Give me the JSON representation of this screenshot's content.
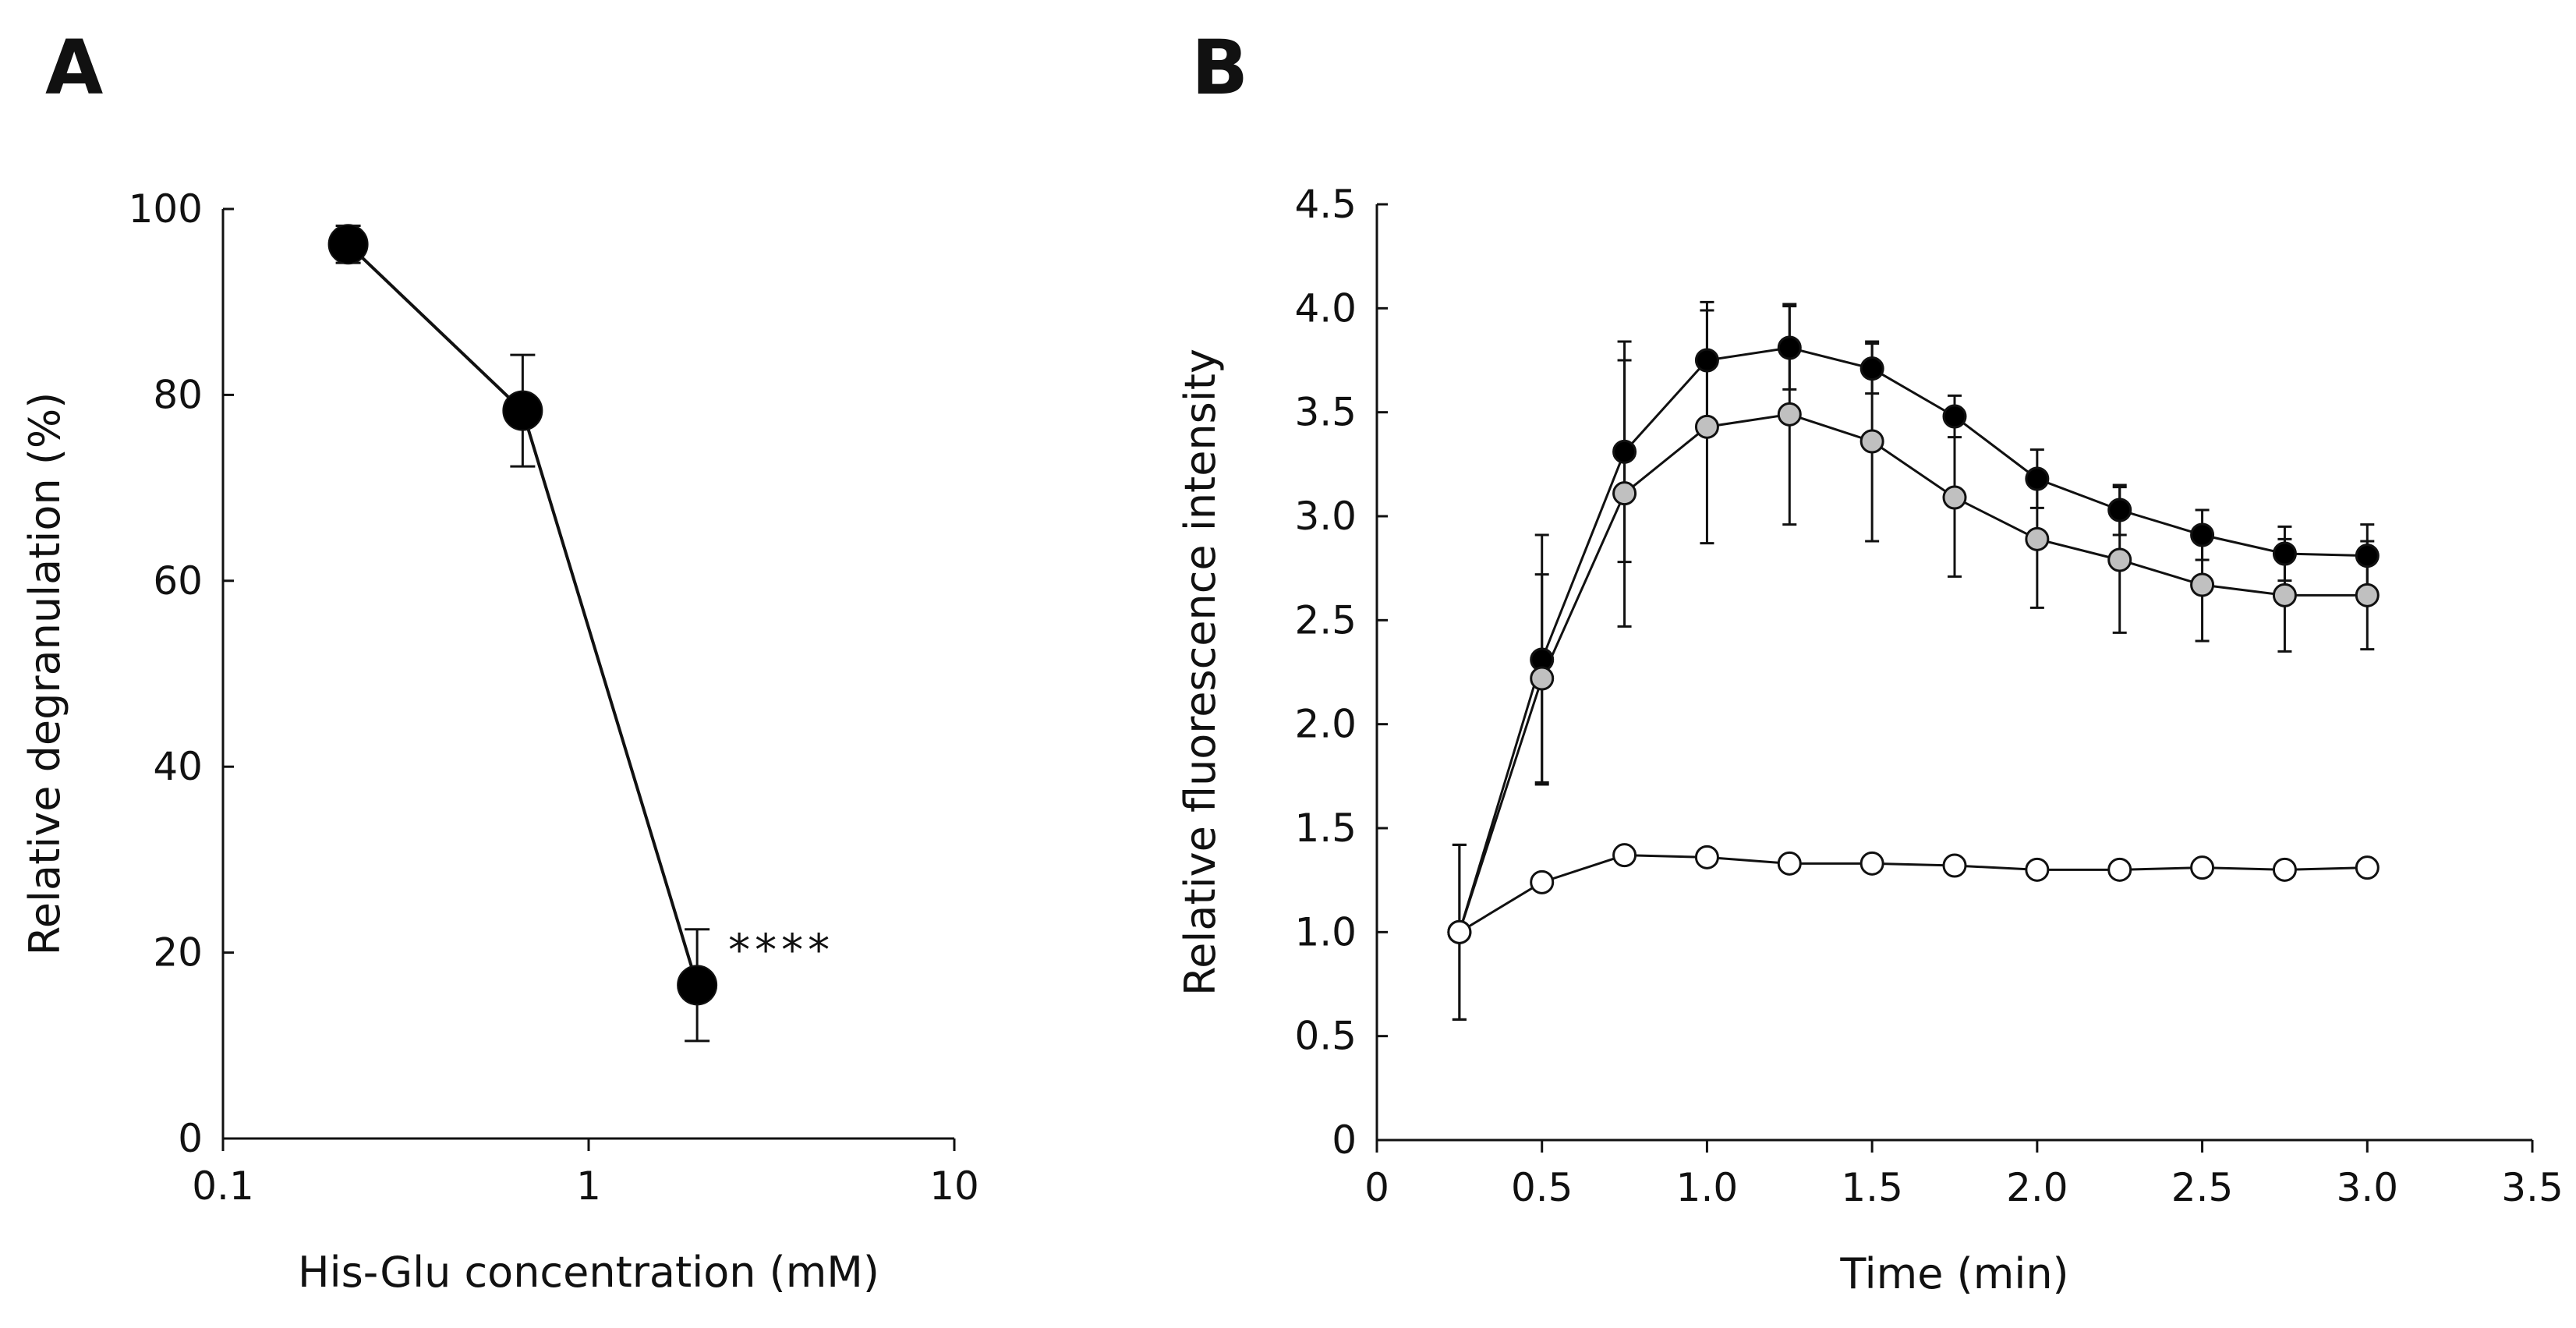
{
  "chart_data": [
    {
      "panel": "A",
      "type": "line",
      "xscale": "log",
      "xlabel": "His-Glu concentration (mM)",
      "ylabel": "Relative degranulation (%)",
      "xlim": [
        0.1,
        10
      ],
      "ylim": [
        0,
        100
      ],
      "xticks": [
        0.1,
        1,
        10
      ],
      "xtick_labels": [
        "0.1",
        "1",
        "10"
      ],
      "yticks": [
        0,
        20,
        40,
        60,
        80,
        100
      ],
      "ytick_labels": [
        "0",
        "20",
        "40",
        "60",
        "80",
        "100"
      ],
      "grid": false,
      "series": [
        {
          "name": "His-Glu",
          "marker": "filled-black",
          "x": [
            0.22,
            0.66,
            1.98
          ],
          "y": [
            96.2,
            78.3,
            16.5
          ],
          "err": [
            2.0,
            6.0,
            6.0
          ]
        }
      ],
      "annotations": [
        {
          "text": "****",
          "x": 1.98,
          "y": 21
        }
      ]
    },
    {
      "panel": "B",
      "type": "line",
      "xlabel": "Time (min)",
      "ylabel": "Relative fluorescence intensity",
      "xlim": [
        0,
        3.5
      ],
      "ylim": [
        0,
        4.5
      ],
      "xticks": [
        0,
        0.5,
        1.0,
        1.5,
        2.0,
        2.5,
        3.0,
        3.5
      ],
      "xtick_labels": [
        "0",
        "0.5",
        "1.0",
        "1.5",
        "2.0",
        "2.5",
        "3.0",
        "3.5"
      ],
      "yticks": [
        0,
        0.5,
        1.0,
        1.5,
        2.0,
        2.5,
        3.0,
        3.5,
        4.0,
        4.5
      ],
      "ytick_labels": [
        "0",
        "0.5",
        "1.0",
        "1.5",
        "2.0",
        "2.5",
        "3.0",
        "3.5",
        "4.0",
        "4.5"
      ],
      "grid": false,
      "x": [
        0.25,
        0.5,
        0.75,
        1.0,
        1.25,
        1.5,
        1.75,
        2.0,
        2.25,
        2.5,
        2.75,
        3.0
      ],
      "series": [
        {
          "name": "black",
          "marker": "filled-black",
          "values": [
            1.0,
            2.31,
            3.31,
            3.75,
            3.81,
            3.71,
            3.48,
            3.18,
            3.03,
            2.91,
            2.82,
            2.81
          ],
          "err": [
            0.42,
            0.6,
            0.53,
            0.28,
            0.2,
            0.12,
            0.1,
            0.14,
            0.12,
            0.12,
            0.13,
            0.15
          ]
        },
        {
          "name": "gray",
          "marker": "filled-gray",
          "values": [
            1.0,
            2.22,
            3.11,
            3.43,
            3.49,
            3.36,
            3.09,
            2.89,
            2.79,
            2.67,
            2.62,
            2.62
          ],
          "err": [
            0.42,
            0.5,
            0.64,
            0.56,
            0.53,
            0.48,
            0.38,
            0.33,
            0.35,
            0.27,
            0.27,
            0.26
          ]
        },
        {
          "name": "white",
          "marker": "open",
          "values": [
            1.0,
            1.24,
            1.37,
            1.36,
            1.33,
            1.33,
            1.32,
            1.3,
            1.3,
            1.31,
            1.3,
            1.31
          ],
          "err": [
            0.0,
            0.0,
            0.0,
            0.0,
            0.0,
            0.0,
            0.0,
            0.0,
            0.0,
            0.0,
            0.0,
            0.0
          ]
        }
      ]
    }
  ],
  "colors": {
    "filled-black": "#000000",
    "filled-gray": "#c0c0c0",
    "open": "#ffffff",
    "stroke": "#111111"
  }
}
